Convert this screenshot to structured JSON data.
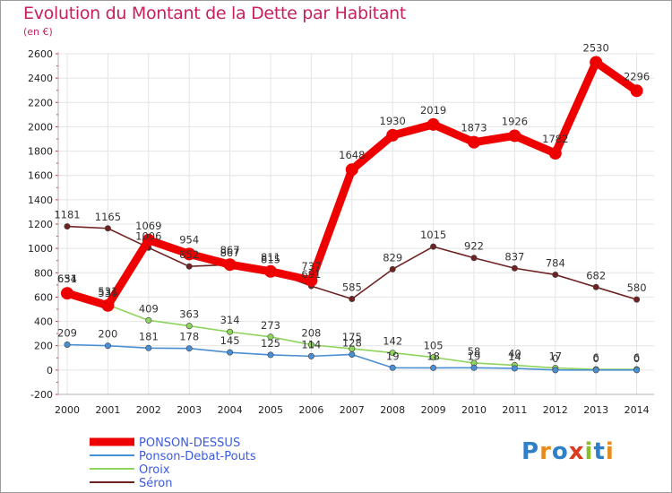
{
  "title": "Evolution du Montant de la Dette par Habitant",
  "unit_label": "(en €)",
  "logo": {
    "text": "Proxiti",
    "colors": [
      "#2f7fc9",
      "#e88b1d",
      "#2f7fc9",
      "#d93b1f",
      "#8bbf2a",
      "#2f7fc9",
      "#e88b1d"
    ]
  },
  "chart_data": {
    "type": "line",
    "x": [
      "2000",
      "2001",
      "2002",
      "2003",
      "2004",
      "2005",
      "2006",
      "2007",
      "2008",
      "2009",
      "2010",
      "2011",
      "2012",
      "2013",
      "2014"
    ],
    "ylim": [
      -200,
      2600
    ],
    "yticks": [
      -200,
      0,
      200,
      400,
      600,
      800,
      1000,
      1200,
      1400,
      1600,
      1800,
      2000,
      2200,
      2400,
      2600
    ],
    "grid": true,
    "legend": "bottom-left",
    "series": [
      {
        "name": "Séron",
        "color": "#6e2222",
        "values": [
          1181,
          1165,
          1006,
          852,
          867,
          815,
          691,
          585,
          829,
          1015,
          922,
          837,
          784,
          682,
          580
        ],
        "labels": [
          "1181",
          "1165",
          "1006",
          "852",
          "867",
          "815",
          "691",
          "585",
          "829",
          "1015",
          "922",
          "837",
          "784",
          "682",
          "580"
        ]
      },
      {
        "name": "Oroix",
        "color": "#8fd45c",
        "values": [
          654,
          536,
          409,
          363,
          314,
          273,
          208,
          175,
          142,
          105,
          58,
          40,
          17,
          6,
          6
        ],
        "labels": [
          "654",
          "536",
          "409",
          "363",
          "314",
          "273",
          "208",
          "175",
          "142",
          "105",
          "58",
          "40",
          "17",
          "6",
          "6"
        ]
      },
      {
        "name": "Ponson-Debat-Pouts",
        "color": "#4a8fd4",
        "values": [
          209,
          200,
          181,
          178,
          145,
          125,
          114,
          128,
          19,
          18,
          19,
          14,
          0,
          0,
          0
        ],
        "labels": [
          "209",
          "200",
          "181",
          "178",
          "145",
          "125",
          "114",
          "128",
          "19",
          "18",
          "19",
          "14",
          "0",
          "0",
          "0"
        ]
      },
      {
        "name": "PONSON-DESSUS",
        "color": "#ee0000",
        "values": [
          631,
          531,
          1069,
          954,
          867,
          811,
          737,
          1648,
          1930,
          2019,
          1873,
          1926,
          1782,
          2530,
          2296
        ],
        "labels": [
          "631",
          "531",
          "1069",
          "954",
          "867",
          "811",
          "737",
          "1648",
          "1930",
          "2019",
          "1873",
          "1926",
          "1782",
          "2530",
          "2296"
        ]
      }
    ],
    "legend_order": [
      "PONSON-DESSUS",
      "Ponson-Debat-Pouts",
      "Oroix",
      "Séron"
    ],
    "legend_colors": {
      "PONSON-DESSUS": "#ee0000",
      "Ponson-Debat-Pouts": "#4a8fd4",
      "Oroix": "#8fd45c",
      "Séron": "#6e2222"
    },
    "legend_text_colors": {
      "PONSON-DESSUS": "#3b5be0",
      "Ponson-Debat-Pouts": "#3b5be0",
      "Oroix": "#3b5be0",
      "Séron": "#3b5be0"
    }
  }
}
